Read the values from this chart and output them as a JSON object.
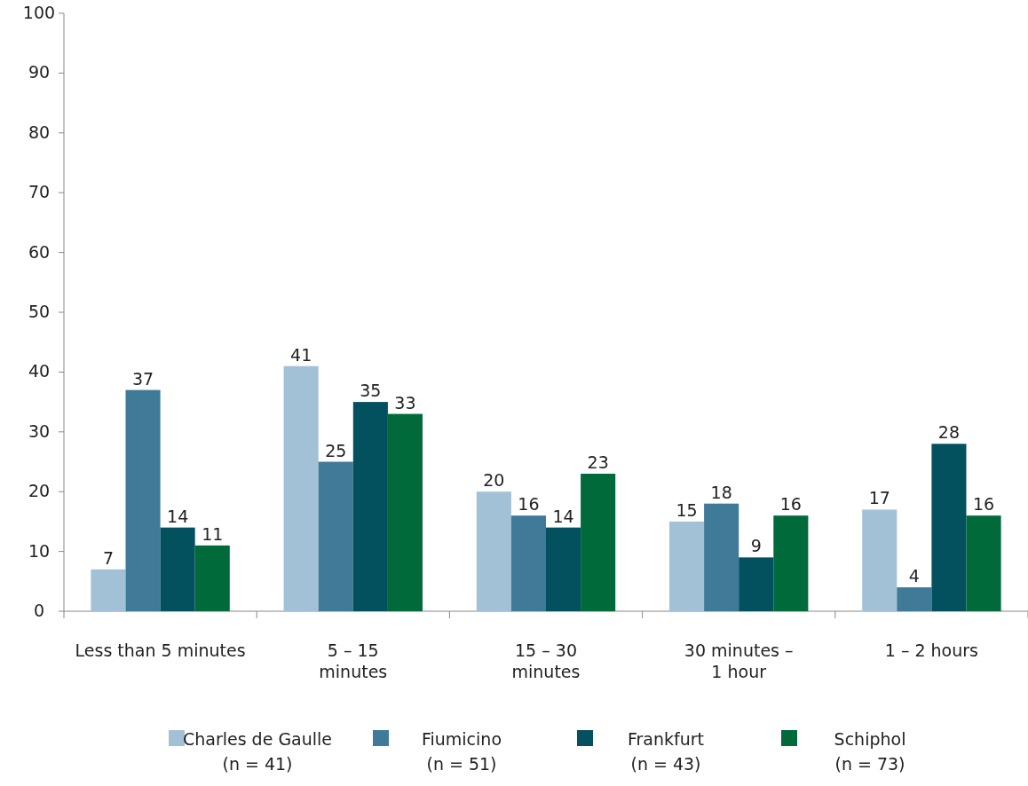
{
  "chart_data": {
    "type": "bar",
    "categories": [
      "Less than 5 minutes",
      "5 – 15\nminutes",
      "15 – 30\nminutes",
      "30 minutes –\n1 hour",
      "1 – 2 hours"
    ],
    "series": [
      {
        "name": "Charles de Gaulle\n(n = 41)",
        "color": "#a3c1d6",
        "values": [
          7,
          41,
          20,
          15,
          17
        ]
      },
      {
        "name": "Fiumicino\n(n = 51)",
        "color": "#3f7a99",
        "values": [
          37,
          25,
          16,
          18,
          4
        ]
      },
      {
        "name": "Frankfurt\n(n = 43)",
        "color": "#03505f",
        "values": [
          14,
          35,
          14,
          9,
          28
        ]
      },
      {
        "name": "Schiphol\n(n = 73)",
        "color": "#006a3a",
        "values": [
          11,
          33,
          23,
          16,
          16
        ]
      }
    ],
    "ylim": [
      0,
      100
    ],
    "yticks": [
      0,
      10,
      20,
      30,
      40,
      50,
      60,
      70,
      80,
      90,
      100
    ],
    "data_labels": true,
    "grid": false,
    "legend": "bottom"
  }
}
